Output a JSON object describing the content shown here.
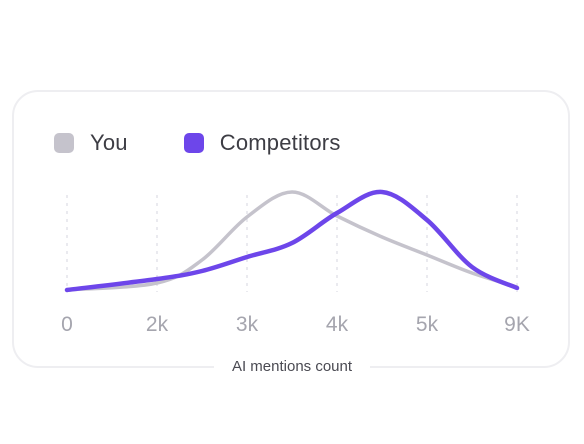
{
  "legend": {
    "you_label": "You",
    "competitors_label": "Competitors"
  },
  "colors": {
    "you": "#c5c3cc",
    "competitors": "#6d46ea",
    "grid": "#e4e4ea",
    "tick": "#a5a5ae"
  },
  "chart_data": {
    "type": "line",
    "xlabel": "AI mentions count",
    "ylabel": "",
    "x_ticks": [
      "0",
      "2k",
      "3k",
      "4k",
      "5k",
      "9K"
    ],
    "grid": "vertical dotted",
    "legend_position": "top-left",
    "series": [
      {
        "name": "You",
        "points": [
          [
            0,
            0.0
          ],
          [
            1,
            0.07
          ],
          [
            1.5,
            0.3
          ],
          [
            2,
            0.73
          ],
          [
            2.5,
            0.98
          ],
          [
            3,
            0.74
          ],
          [
            3.5,
            0.53
          ],
          [
            4,
            0.35
          ],
          [
            4.5,
            0.17
          ],
          [
            5,
            0.03
          ]
        ]
      },
      {
        "name": "Competitors",
        "points": [
          [
            0,
            0.0
          ],
          [
            1,
            0.11
          ],
          [
            1.5,
            0.19
          ],
          [
            2,
            0.33
          ],
          [
            2.5,
            0.47
          ],
          [
            3,
            0.77
          ],
          [
            3.5,
            0.98
          ],
          [
            4,
            0.7
          ],
          [
            4.5,
            0.23
          ],
          [
            5,
            0.02
          ]
        ]
      }
    ]
  }
}
